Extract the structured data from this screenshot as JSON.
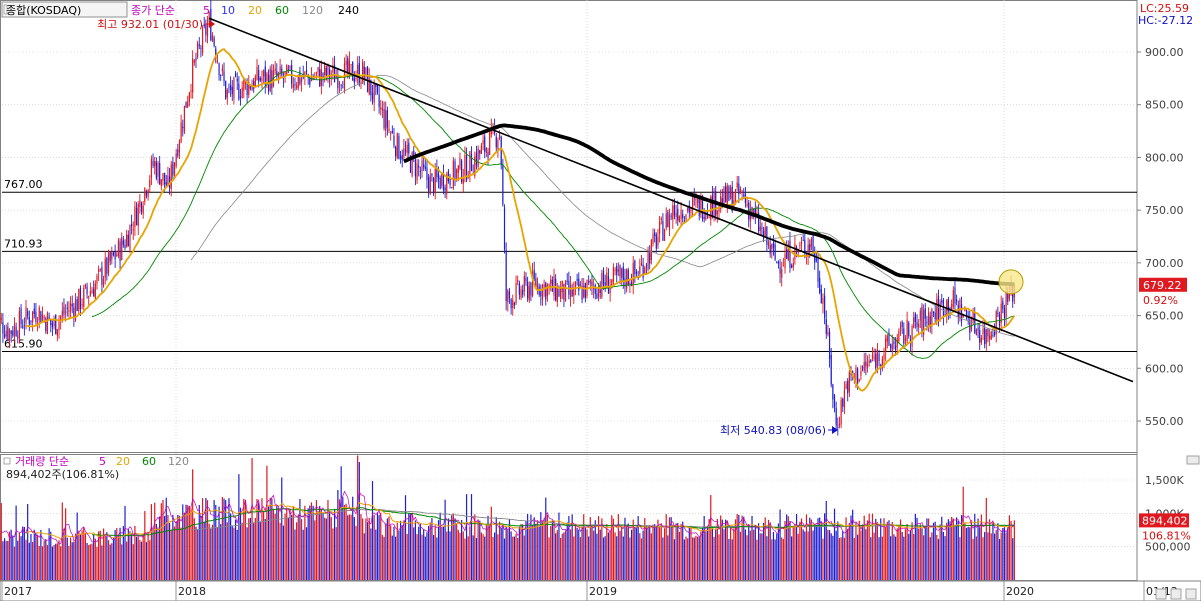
{
  "price_legend": {
    "box": "종합(KOSDAQ)",
    "prefix": "종가 단순",
    "periods": [
      "5",
      "10",
      "20",
      "60",
      "120",
      "240"
    ],
    "colors": [
      "#c000c0",
      "#3030ff",
      "#e8a400",
      "#008800",
      "#888888",
      "#000000"
    ]
  },
  "volume_legend": {
    "prefix": "거래량 단순",
    "periods": [
      "5",
      "20",
      "60",
      "120"
    ],
    "colors": [
      "#c000c0",
      "#e8a400",
      "#008800",
      "#888888"
    ],
    "value": "894,402주(106.81%)"
  },
  "corner": {
    "lc": "LC:25.59",
    "hc": "HC:-27.12"
  },
  "annotations": {
    "high": "최고 932.01 (01/30)",
    "low": "최저 540.83 (08/06)"
  },
  "current": {
    "price_box": "679.22",
    "price_pct": "0.92%",
    "volume_box": "894,402",
    "volume_pct": "106.81%"
  },
  "x_labels": [
    "2017",
    "2018",
    "2019",
    "2020",
    "01/13"
  ],
  "colors": {
    "up": "#e0181f",
    "down": "#1f1fd0",
    "ma5": "#c000c0",
    "ma20": "#e8a400",
    "ma60": "#008800",
    "ma120": "#888888",
    "trend": "#000000",
    "grid": "#c8c8c8",
    "tag": "#e0181f"
  },
  "chart_data": [
    {
      "type": "candlestick",
      "title": "종합(KOSDAQ)",
      "y_axis_ticks": [
        550,
        600,
        650,
        700,
        750,
        800,
        850,
        900
      ],
      "ylim": [
        520,
        940
      ],
      "horizontal_levels": [
        {
          "value": 767.0,
          "label": "767.00"
        },
        {
          "value": 710.93,
          "label": "710.93"
        },
        {
          "value": 615.9,
          "label": "615.90"
        }
      ],
      "trendline": {
        "from": [
          "2018-01-30",
          932.01
        ],
        "to": [
          "2020-01-13",
          631
        ]
      },
      "major_extremes": {
        "high": {
          "date": "2018-01-30",
          "value": 932.01
        },
        "low": {
          "date": "2019-08-06",
          "value": 540.83
        }
      },
      "last": {
        "date": "2020-01-13",
        "close": 679.22,
        "change_pct": 0.92
      },
      "close_path": [
        {
          "x": "2016-12",
          "y": 650
        },
        {
          "x": "2017-01",
          "y": 635
        },
        {
          "x": "2017-02",
          "y": 645
        },
        {
          "x": "2017-03",
          "y": 655
        },
        {
          "x": "2017-04",
          "y": 640
        },
        {
          "x": "2017-05",
          "y": 655
        },
        {
          "x": "2017-06",
          "y": 665
        },
        {
          "x": "2017-07",
          "y": 680
        },
        {
          "x": "2017-08",
          "y": 700
        },
        {
          "x": "2017-09",
          "y": 720
        },
        {
          "x": "2017-10",
          "y": 755
        },
        {
          "x": "2017-11",
          "y": 795
        },
        {
          "x": "2017-12",
          "y": 770
        },
        {
          "x": "2018-01",
          "y": 880
        },
        {
          "x": "2018-01-30",
          "y": 930
        },
        {
          "x": "2018-02",
          "y": 860
        },
        {
          "x": "2018-03",
          "y": 875
        },
        {
          "x": "2018-04",
          "y": 875
        },
        {
          "x": "2018-05",
          "y": 878
        },
        {
          "x": "2018-06",
          "y": 880
        },
        {
          "x": "2018-07",
          "y": 810
        },
        {
          "x": "2018-08",
          "y": 775
        },
        {
          "x": "2018-09",
          "y": 790
        },
        {
          "x": "2018-10",
          "y": 825
        },
        {
          "x": "2018-10-20",
          "y": 665
        },
        {
          "x": "2018-11",
          "y": 680
        },
        {
          "x": "2018-12",
          "y": 670
        },
        {
          "x": "2019-01",
          "y": 680
        },
        {
          "x": "2019-02",
          "y": 690
        },
        {
          "x": "2019-03",
          "y": 750
        },
        {
          "x": "2019-04",
          "y": 755
        },
        {
          "x": "2019-05",
          "y": 765
        },
        {
          "x": "2019-06",
          "y": 700
        },
        {
          "x": "2019-07",
          "y": 720
        },
        {
          "x": "2019-07-25",
          "y": 665
        },
        {
          "x": "2019-08-06",
          "y": 545
        },
        {
          "x": "2019-08-15",
          "y": 585
        },
        {
          "x": "2019-09",
          "y": 615
        },
        {
          "x": "2019-10",
          "y": 640
        },
        {
          "x": "2019-11",
          "y": 665
        },
        {
          "x": "2019-12",
          "y": 630
        },
        {
          "x": "2020-01-13",
          "y": 679
        }
      ]
    },
    {
      "type": "bar",
      "title": "거래량",
      "y_axis_ticks": [
        500000,
        1000000,
        1500000
      ],
      "y_axis_labels": [
        "500,000",
        "1,000K",
        "1,500K"
      ],
      "ylim": [
        0,
        1800000
      ],
      "last": {
        "value": 894402,
        "pct_of_avg": 106.81
      }
    }
  ]
}
